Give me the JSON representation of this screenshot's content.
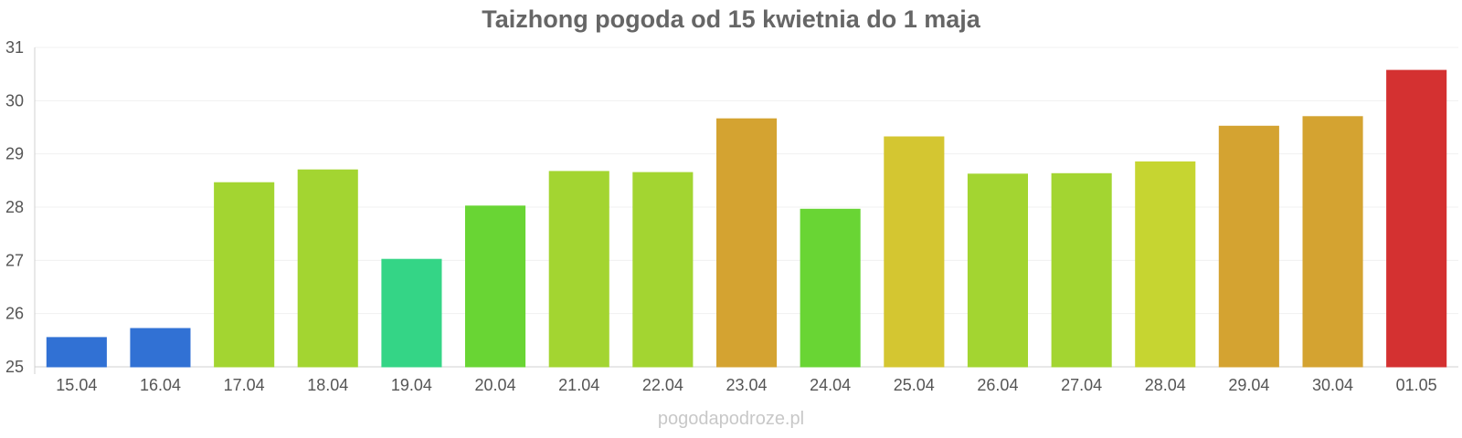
{
  "chart_data": {
    "type": "bar",
    "title": "Taizhong pogoda od 15 kwietnia do 1 maja",
    "xlabel": "",
    "ylabel": "",
    "ylim": [
      25,
      31
    ],
    "yticks": [
      25,
      26,
      27,
      28,
      29,
      30,
      31
    ],
    "grid": true,
    "legend": "none",
    "categories": [
      "15.04",
      "16.04",
      "17.04",
      "18.04",
      "19.04",
      "20.04",
      "21.04",
      "22.04",
      "23.04",
      "24.04",
      "25.04",
      "26.04",
      "27.04",
      "28.04",
      "29.04",
      "30.04",
      "01.05"
    ],
    "values": [
      25.55,
      25.72,
      28.46,
      28.7,
      27.02,
      28.02,
      28.67,
      28.65,
      29.66,
      27.96,
      29.32,
      28.62,
      28.63,
      28.85,
      29.52,
      29.7,
      30.57
    ],
    "colors": [
      "#3375db",
      "#3375db",
      "#a8dc33",
      "#a8dc33",
      "#36dc8a",
      "#6cdc36",
      "#a8dc33",
      "#a8dc33",
      "#dba833",
      "#6cdc36",
      "#dbcc33",
      "#a8dc33",
      "#a8dc33",
      "#ccdc33",
      "#dba833",
      "#dba833",
      "#db3333"
    ]
  },
  "watermark": "pogodapodroze.pl"
}
